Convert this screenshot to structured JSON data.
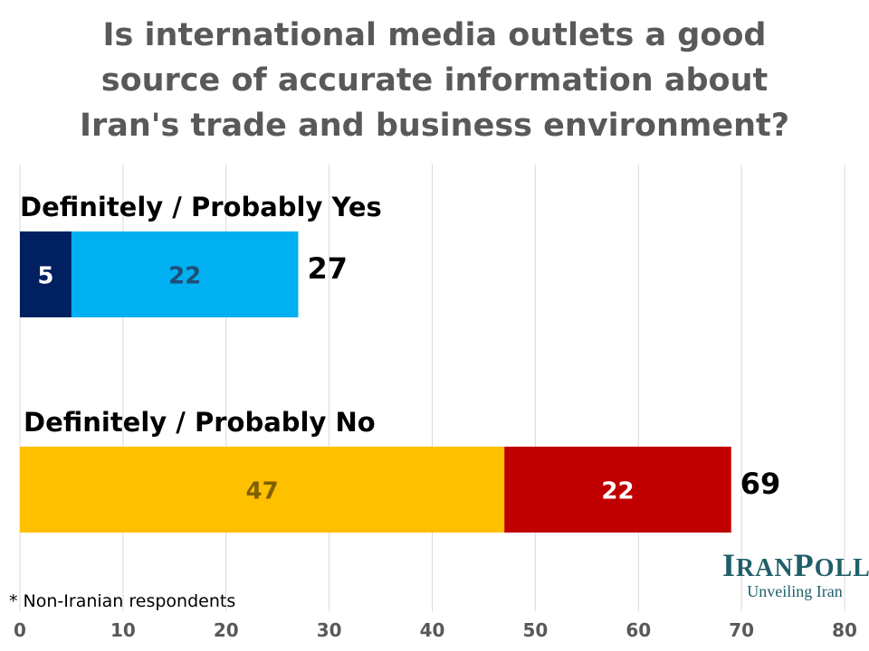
{
  "title_lines": [
    "Is international media outlets a good",
    "source of accurate information about",
    "Iran's trade and business environment?"
  ],
  "footnote": "* Non-Iranian respondents",
  "logo": {
    "main_first": "I",
    "main_rest1": "RAN",
    "main_second": "P",
    "main_rest2": "OLL",
    "tagline": "Unveiling Iran"
  },
  "chart_data": {
    "type": "bar",
    "orientation": "horizontal",
    "stacked": true,
    "xlim": [
      0,
      80
    ],
    "xticks": [
      0,
      10,
      20,
      30,
      40,
      50,
      60,
      70,
      80
    ],
    "grid": true,
    "groups": [
      {
        "label": "Definitely / Probably Yes",
        "total": 27,
        "segments": [
          {
            "value": 5,
            "color": "#002060",
            "label_color": "#ffffff"
          },
          {
            "value": 22,
            "color": "#00b0f0",
            "label_color": "#1f4e79"
          }
        ]
      },
      {
        "label": "Definitely / Probably No",
        "total": 69,
        "segments": [
          {
            "value": 47,
            "color": "#ffc000",
            "label_color": "#7f6000"
          },
          {
            "value": 22,
            "color": "#c00000",
            "label_color": "#ffffff"
          }
        ]
      }
    ]
  }
}
